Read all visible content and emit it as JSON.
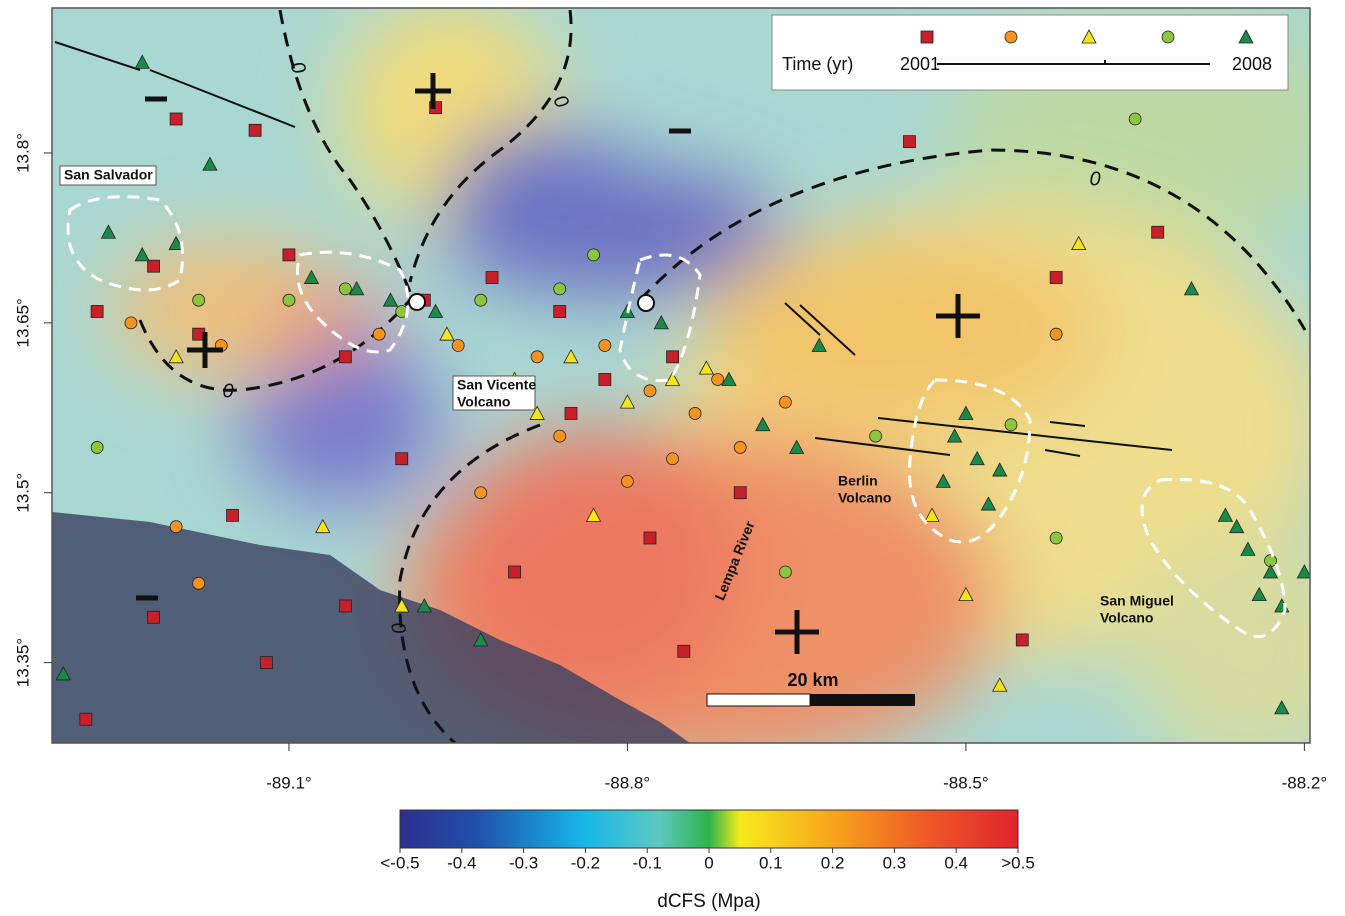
{
  "chart_data": {
    "type": "scatter",
    "xlim": [
      -89.31,
      -88.195
    ],
    "ylim": [
      13.279,
      13.928
    ],
    "xticks": [
      {
        "value": -89.1,
        "label": "-89.1°"
      },
      {
        "value": -88.8,
        "label": "-88.8°"
      },
      {
        "value": -88.5,
        "label": "-88.5°"
      },
      {
        "value": -88.2,
        "label": "-88.2°"
      }
    ],
    "yticks": [
      {
        "value": 13.35,
        "label": "13.35°"
      },
      {
        "value": 13.5,
        "label": "13.5°"
      },
      {
        "value": 13.65,
        "label": "13.65°"
      },
      {
        "value": 13.8,
        "label": "13.8°"
      }
    ],
    "legend": {
      "title": "Time (yr)",
      "start": "2001",
      "end": "2008"
    },
    "series": [
      {
        "marker": "square",
        "color": "#c8202a",
        "x": [
          -89.27,
          -89.22,
          -89.18,
          -89.1,
          -89.05,
          -88.98,
          -88.92,
          -88.86,
          -88.82,
          -88.76,
          -89.2,
          -89.13,
          -88.97,
          -88.85,
          -88.78,
          -88.9,
          -89.15,
          -89.22,
          -89.28,
          -89.12,
          -88.75,
          -88.45,
          -88.33,
          -88.55,
          -89.0,
          -88.7,
          -89.05,
          -88.42
        ],
        "y": [
          13.66,
          13.7,
          13.64,
          13.71,
          13.62,
          13.67,
          13.69,
          13.66,
          13.6,
          13.62,
          13.83,
          13.82,
          13.84,
          13.57,
          13.46,
          13.43,
          13.48,
          13.39,
          13.3,
          13.35,
          13.36,
          13.37,
          13.73,
          13.81,
          13.53,
          13.5,
          13.4,
          13.69
        ]
      },
      {
        "marker": "circle",
        "color": "#f39322",
        "x": [
          -89.24,
          -89.16,
          -89.02,
          -88.95,
          -88.88,
          -88.82,
          -88.78,
          -88.74,
          -88.72,
          -88.76,
          -88.8,
          -89.18,
          -89.2,
          -88.66,
          -88.42,
          -88.86,
          -88.93,
          -88.7
        ],
        "y": [
          13.65,
          13.63,
          13.64,
          13.63,
          13.62,
          13.63,
          13.59,
          13.57,
          13.6,
          13.53,
          13.51,
          13.42,
          13.47,
          13.58,
          13.64,
          13.55,
          13.5,
          13.54
        ]
      },
      {
        "marker": "triangle",
        "color": "#f4e51a",
        "x": [
          -88.9,
          -88.85,
          -88.8,
          -88.76,
          -88.73,
          -88.88,
          -88.96,
          -89.2,
          -88.83,
          -88.5,
          -88.47,
          -88.53,
          -88.4,
          -89.07,
          -89.0
        ],
        "y": [
          13.6,
          13.62,
          13.58,
          13.6,
          13.61,
          13.57,
          13.64,
          13.62,
          13.48,
          13.41,
          13.33,
          13.48,
          13.72,
          13.47,
          13.4
        ]
      },
      {
        "marker": "circle",
        "color": "#8cc63f",
        "x": [
          -89.1,
          -89.05,
          -89.0,
          -88.93,
          -88.86,
          -89.18,
          -88.66,
          -88.42,
          -88.58,
          -88.35,
          -89.27,
          -88.83,
          -88.46,
          -88.23
        ],
        "y": [
          13.67,
          13.68,
          13.66,
          13.67,
          13.68,
          13.67,
          13.43,
          13.46,
          13.55,
          13.83,
          13.54,
          13.71,
          13.56,
          13.44
        ]
      },
      {
        "marker": "triangle",
        "color": "#1a8a4a",
        "x": [
          -89.26,
          -89.23,
          -89.2,
          -89.08,
          -89.04,
          -89.01,
          -88.97,
          -88.8,
          -88.77,
          -88.71,
          -88.68,
          -88.65,
          -88.51,
          -88.49,
          -88.47,
          -88.52,
          -88.5,
          -88.48,
          -88.27,
          -88.25,
          -88.23,
          -88.24,
          -88.22,
          -88.26,
          -89.23,
          -89.17,
          -88.93,
          -89.3,
          -88.2,
          -88.22,
          -88.3,
          -88.63,
          -88.98
        ],
        "y": [
          13.73,
          13.71,
          13.72,
          13.69,
          13.68,
          13.67,
          13.66,
          13.66,
          13.65,
          13.6,
          13.56,
          13.54,
          13.55,
          13.53,
          13.52,
          13.51,
          13.57,
          13.49,
          13.48,
          13.45,
          13.43,
          13.41,
          13.4,
          13.47,
          13.88,
          13.79,
          13.37,
          13.34,
          13.43,
          13.31,
          13.68,
          13.63,
          13.4
        ]
      }
    ],
    "places": [
      [
        "San Salvador"
      ],
      [
        "San Vicente",
        "Volcano"
      ],
      [
        "Berlin",
        "Volcano"
      ],
      [
        "San Miguel",
        "Volcano"
      ],
      [
        "Lempa River"
      ]
    ],
    "contour_label": "0",
    "scale_bar": "20 km",
    "colorbar": {
      "label": "dCFS (Mpa)",
      "lim": [
        -0.5,
        0.5
      ],
      "ticks": [
        {
          "value": -0.5,
          "label": "<-0.5"
        },
        -0.4,
        -0.3,
        -0.2,
        -0.1,
        0,
        0.1,
        0.2,
        0.3,
        0.4,
        {
          "value": 0.5,
          "label": ">0.5"
        }
      ]
    }
  }
}
